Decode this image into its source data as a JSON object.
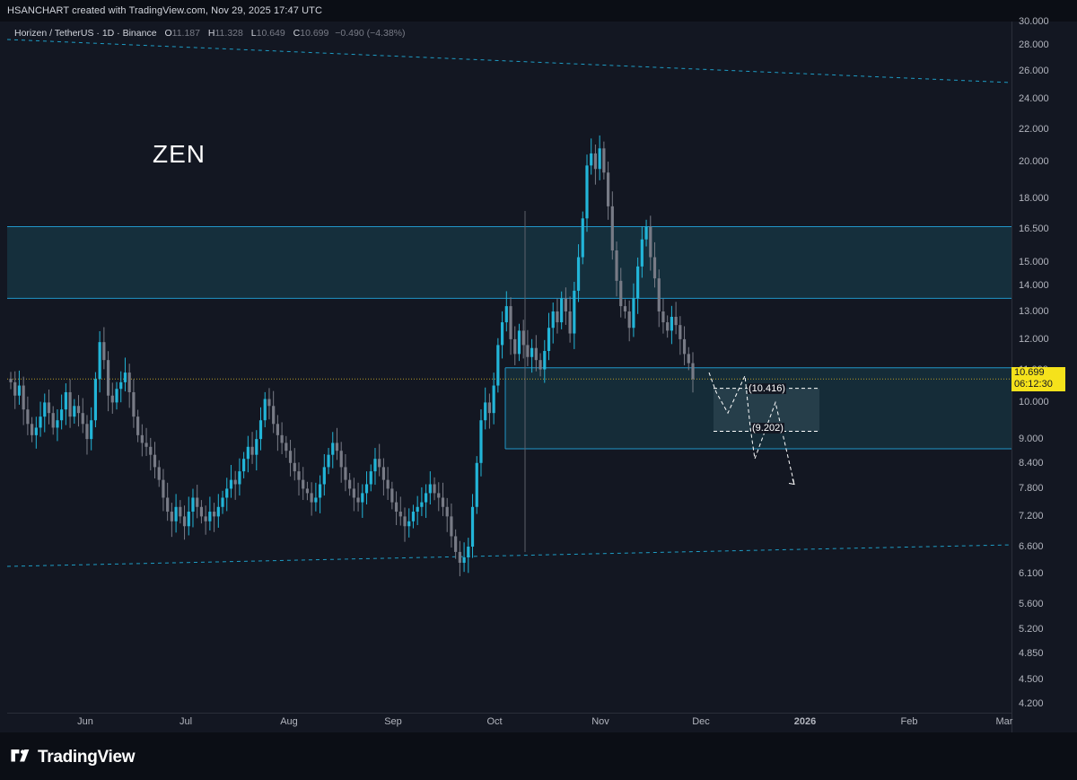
{
  "header": {
    "attribution": "HSANCHART created with TradingView.com, Nov 29, 2025 17:47 UTC"
  },
  "legend": {
    "symbol": "Horizen / TetherUS · 1D · Binance",
    "o_label": "O",
    "o_value": "11.187",
    "h_label": "H",
    "h_value": "11.328",
    "l_label": "L",
    "l_value": "10.649",
    "c_label": "C",
    "c_value": "10.699",
    "change": "−0.490 (−4.38%)"
  },
  "annotation": {
    "ticker": "ZEN"
  },
  "price_badge": {
    "price": "10.699",
    "countdown": "06:12:30"
  },
  "projection_labels": {
    "upper": "(10.416)",
    "lower": "(9.202)"
  },
  "footer": {
    "brand": "TradingView"
  },
  "colors": {
    "background": "#131722",
    "up": "#22b5d8",
    "down": "#787b86",
    "zone_border": "#2196c8",
    "zone_fill": "#16323f",
    "channel": "#1e9cc4",
    "price_badge": "#f5e21b",
    "projection": "#ffffff"
  },
  "chart_data": {
    "type": "candlestick",
    "scale": "log",
    "y_ticks": [
      "30.000",
      "28.000",
      "26.000",
      "24.000",
      "22.000",
      "20.000",
      "18.000",
      "16.500",
      "15.000",
      "14.000",
      "13.000",
      "12.000",
      "11.000",
      "10.000",
      "9.000",
      "8.400",
      "7.800",
      "7.200",
      "6.600",
      "6.100",
      "5.600",
      "5.200",
      "4.850",
      "4.500",
      "4.200"
    ],
    "x_ticks": [
      "Jun",
      "Jul",
      "Aug",
      "Sep",
      "Oct",
      "Nov",
      "Dec",
      "2026",
      "Feb",
      "Mar"
    ],
    "last_price": 10.699,
    "zones": [
      {
        "name": "resistance",
        "top": 16.6,
        "bottom": 13.5
      },
      {
        "name": "support",
        "top": 11.05,
        "bottom": 8.75
      },
      {
        "name": "target",
        "top": 10.416,
        "bottom": 9.202
      }
    ],
    "channel": {
      "upper": [
        {
          "x": "2025-05-01",
          "y": 28.5
        },
        {
          "x": "2026-03-01",
          "y": 25.0
        }
      ],
      "lower": [
        {
          "x": "2025-05-01",
          "y": 6.25
        },
        {
          "x": "2026-03-01",
          "y": 6.65
        }
      ]
    },
    "projection_path": [
      10.9,
      10.3,
      9.7,
      10.8,
      9.3,
      8.5,
      10.0,
      7.9
    ],
    "candles_close": [
      10.6,
      10.2,
      10.5,
      9.8,
      9.4,
      9.1,
      9.3,
      9.6,
      10.0,
      9.7,
      9.3,
      9.5,
      9.8,
      10.3,
      9.6,
      9.9,
      9.7,
      9.4,
      9.0,
      9.5,
      10.7,
      11.9,
      11.3,
      10.2,
      10.0,
      10.4,
      10.6,
      10.9,
      10.3,
      9.6,
      9.1,
      8.9,
      8.8,
      8.6,
      8.3,
      8.0,
      7.6,
      7.3,
      7.1,
      7.4,
      7.2,
      7.0,
      7.3,
      7.6,
      7.4,
      7.2,
      7.1,
      7.3,
      7.2,
      7.4,
      7.6,
      7.8,
      8.0,
      7.9,
      8.2,
      8.5,
      8.8,
      8.6,
      9.0,
      9.5,
      10.1,
      9.9,
      9.4,
      9.1,
      8.9,
      8.7,
      8.4,
      8.2,
      8.0,
      7.8,
      7.7,
      7.5,
      7.6,
      7.9,
      8.3,
      8.6,
      8.9,
      8.7,
      8.3,
      8.0,
      7.8,
      7.6,
      7.5,
      7.7,
      7.9,
      8.2,
      8.5,
      8.3,
      8.0,
      7.8,
      7.5,
      7.3,
      7.2,
      7.0,
      7.1,
      7.3,
      7.4,
      7.5,
      7.7,
      7.9,
      7.7,
      7.6,
      7.4,
      7.2,
      6.8,
      6.5,
      6.3,
      6.4,
      6.6,
      7.4,
      8.4,
      9.5,
      10.0,
      9.7,
      10.5,
      11.8,
      12.6,
      13.2,
      12.0,
      11.5,
      12.3,
      11.8,
      11.4,
      11.7,
      11.3,
      11.0,
      11.6,
      12.4,
      13.0,
      12.6,
      13.5,
      13.0,
      12.2,
      13.8,
      15.2,
      17.0,
      19.8,
      20.5,
      19.6,
      20.8,
      19.4,
      17.6,
      15.5,
      14.2,
      13.2,
      13.0,
      12.4,
      13.5,
      14.8,
      16.0,
      16.6,
      15.2,
      14.3,
      13.0,
      12.6,
      12.3,
      12.8,
      12.5,
      12.0,
      11.5,
      11.2,
      10.699
    ]
  }
}
